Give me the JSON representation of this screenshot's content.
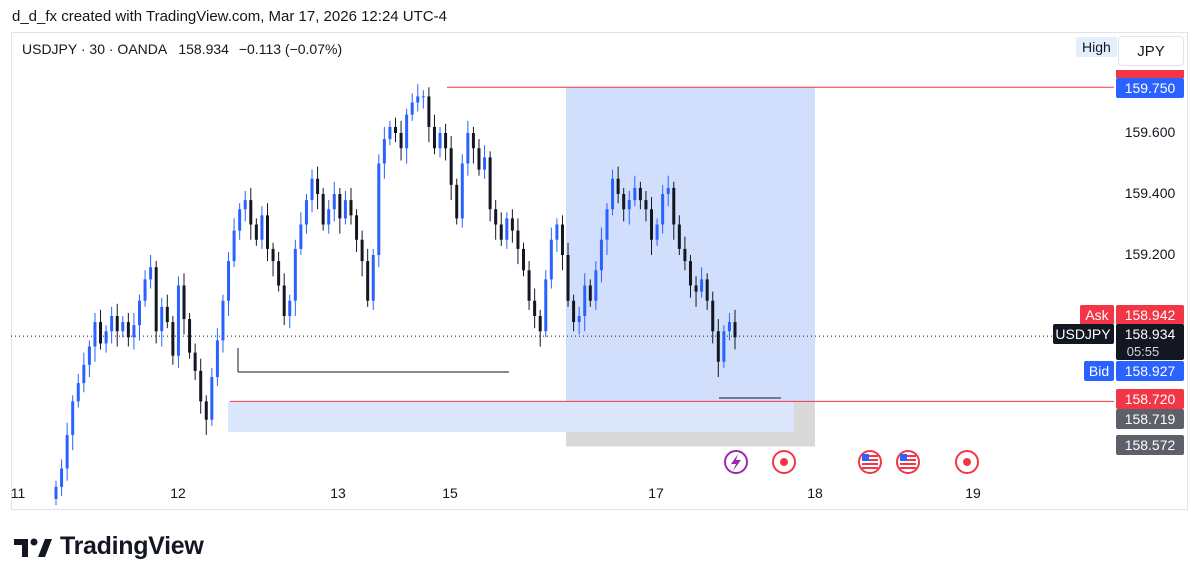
{
  "header": {
    "attribution": "d_d_fx created with TradingView.com, Mar 17, 2026 12:24 UTC-4"
  },
  "legend": {
    "symbol_line": "USDJPY · 30 · OANDA",
    "last": "158.934",
    "change": "−0.113 (−0.07%)"
  },
  "price_scale": {
    "currency": "JPY",
    "high_label": "High",
    "ticks": [
      "159.600",
      "159.400",
      "159.200"
    ]
  },
  "labels": {
    "ask_label": "Ask",
    "ask_value": "158.942",
    "symbol_label": "USDJPY",
    "last_value": "158.934",
    "countdown": "05:55",
    "bid_label": "Bid",
    "bid_value": "158.927",
    "top_line_value": "159.750",
    "bottom_line_value": "158.720",
    "zone_bottom_value": "158.719",
    "box_bottom_value": "158.572"
  },
  "time_axis": {
    "ticks": [
      "11",
      "12",
      "13",
      "15",
      "17",
      "18",
      "19"
    ]
  },
  "colors": {
    "up": "#2962ff",
    "down": "#131722",
    "ask": "#f23645",
    "bid": "#2962ff",
    "zone_fill": "#c9d9fb",
    "grey_fill": "#d9d9d9"
  },
  "events": [
    "lightning-icon",
    "dot-icon",
    "us-flag-icon",
    "us-flag-icon",
    "dot-icon"
  ],
  "brand": "TradingView",
  "chart_data": {
    "type": "candlestick",
    "symbol": "USDJPY",
    "interval": "30",
    "broker": "OANDA",
    "yrange": [
      158.5,
      159.9
    ],
    "x_ticks": [
      "11",
      "12",
      "13",
      "15",
      "17",
      "18",
      "19"
    ],
    "y_ticks": [
      159.6,
      159.4,
      159.2
    ],
    "horizontal_lines": [
      159.75,
      158.72
    ],
    "highlight_zone": [
      158.72,
      158.62
    ],
    "price_range_box": [
      159.75,
      158.572
    ],
    "closes": [
      158.44,
      158.5,
      158.61,
      158.72,
      158.78,
      158.84,
      158.9,
      158.98,
      158.91,
      158.95,
      159.0,
      158.95,
      158.98,
      158.93,
      158.97,
      159.05,
      159.12,
      159.16,
      158.95,
      159.03,
      158.98,
      158.87,
      159.1,
      158.99,
      158.88,
      158.82,
      158.72,
      158.66,
      158.8,
      158.92,
      159.05,
      159.18,
      159.28,
      159.35,
      159.38,
      159.3,
      159.25,
      159.33,
      159.22,
      159.18,
      159.1,
      159.0,
      159.05,
      159.22,
      159.3,
      159.38,
      159.45,
      159.4,
      159.3,
      159.35,
      159.4,
      159.32,
      159.38,
      159.33,
      159.25,
      159.18,
      159.05,
      159.2,
      159.5,
      159.58,
      159.62,
      159.6,
      159.55,
      159.66,
      159.7,
      159.72,
      159.72,
      159.62,
      159.55,
      159.6,
      159.55,
      159.43,
      159.32,
      159.5,
      159.6,
      159.55,
      159.48,
      159.52,
      159.35,
      159.3,
      159.25,
      159.32,
      159.28,
      159.22,
      159.15,
      159.05,
      159.0,
      158.95,
      159.12,
      159.25,
      159.3,
      159.2,
      159.05,
      158.98,
      159.0,
      159.1,
      159.05,
      159.15,
      159.25,
      159.35,
      159.45,
      159.4,
      159.35,
      159.38,
      159.42,
      159.38,
      159.35,
      159.25,
      159.3,
      159.4,
      159.42,
      159.3,
      159.22,
      159.18,
      159.1,
      159.08,
      159.12,
      159.05,
      158.95,
      158.85,
      158.95,
      158.98,
      158.93
    ]
  }
}
